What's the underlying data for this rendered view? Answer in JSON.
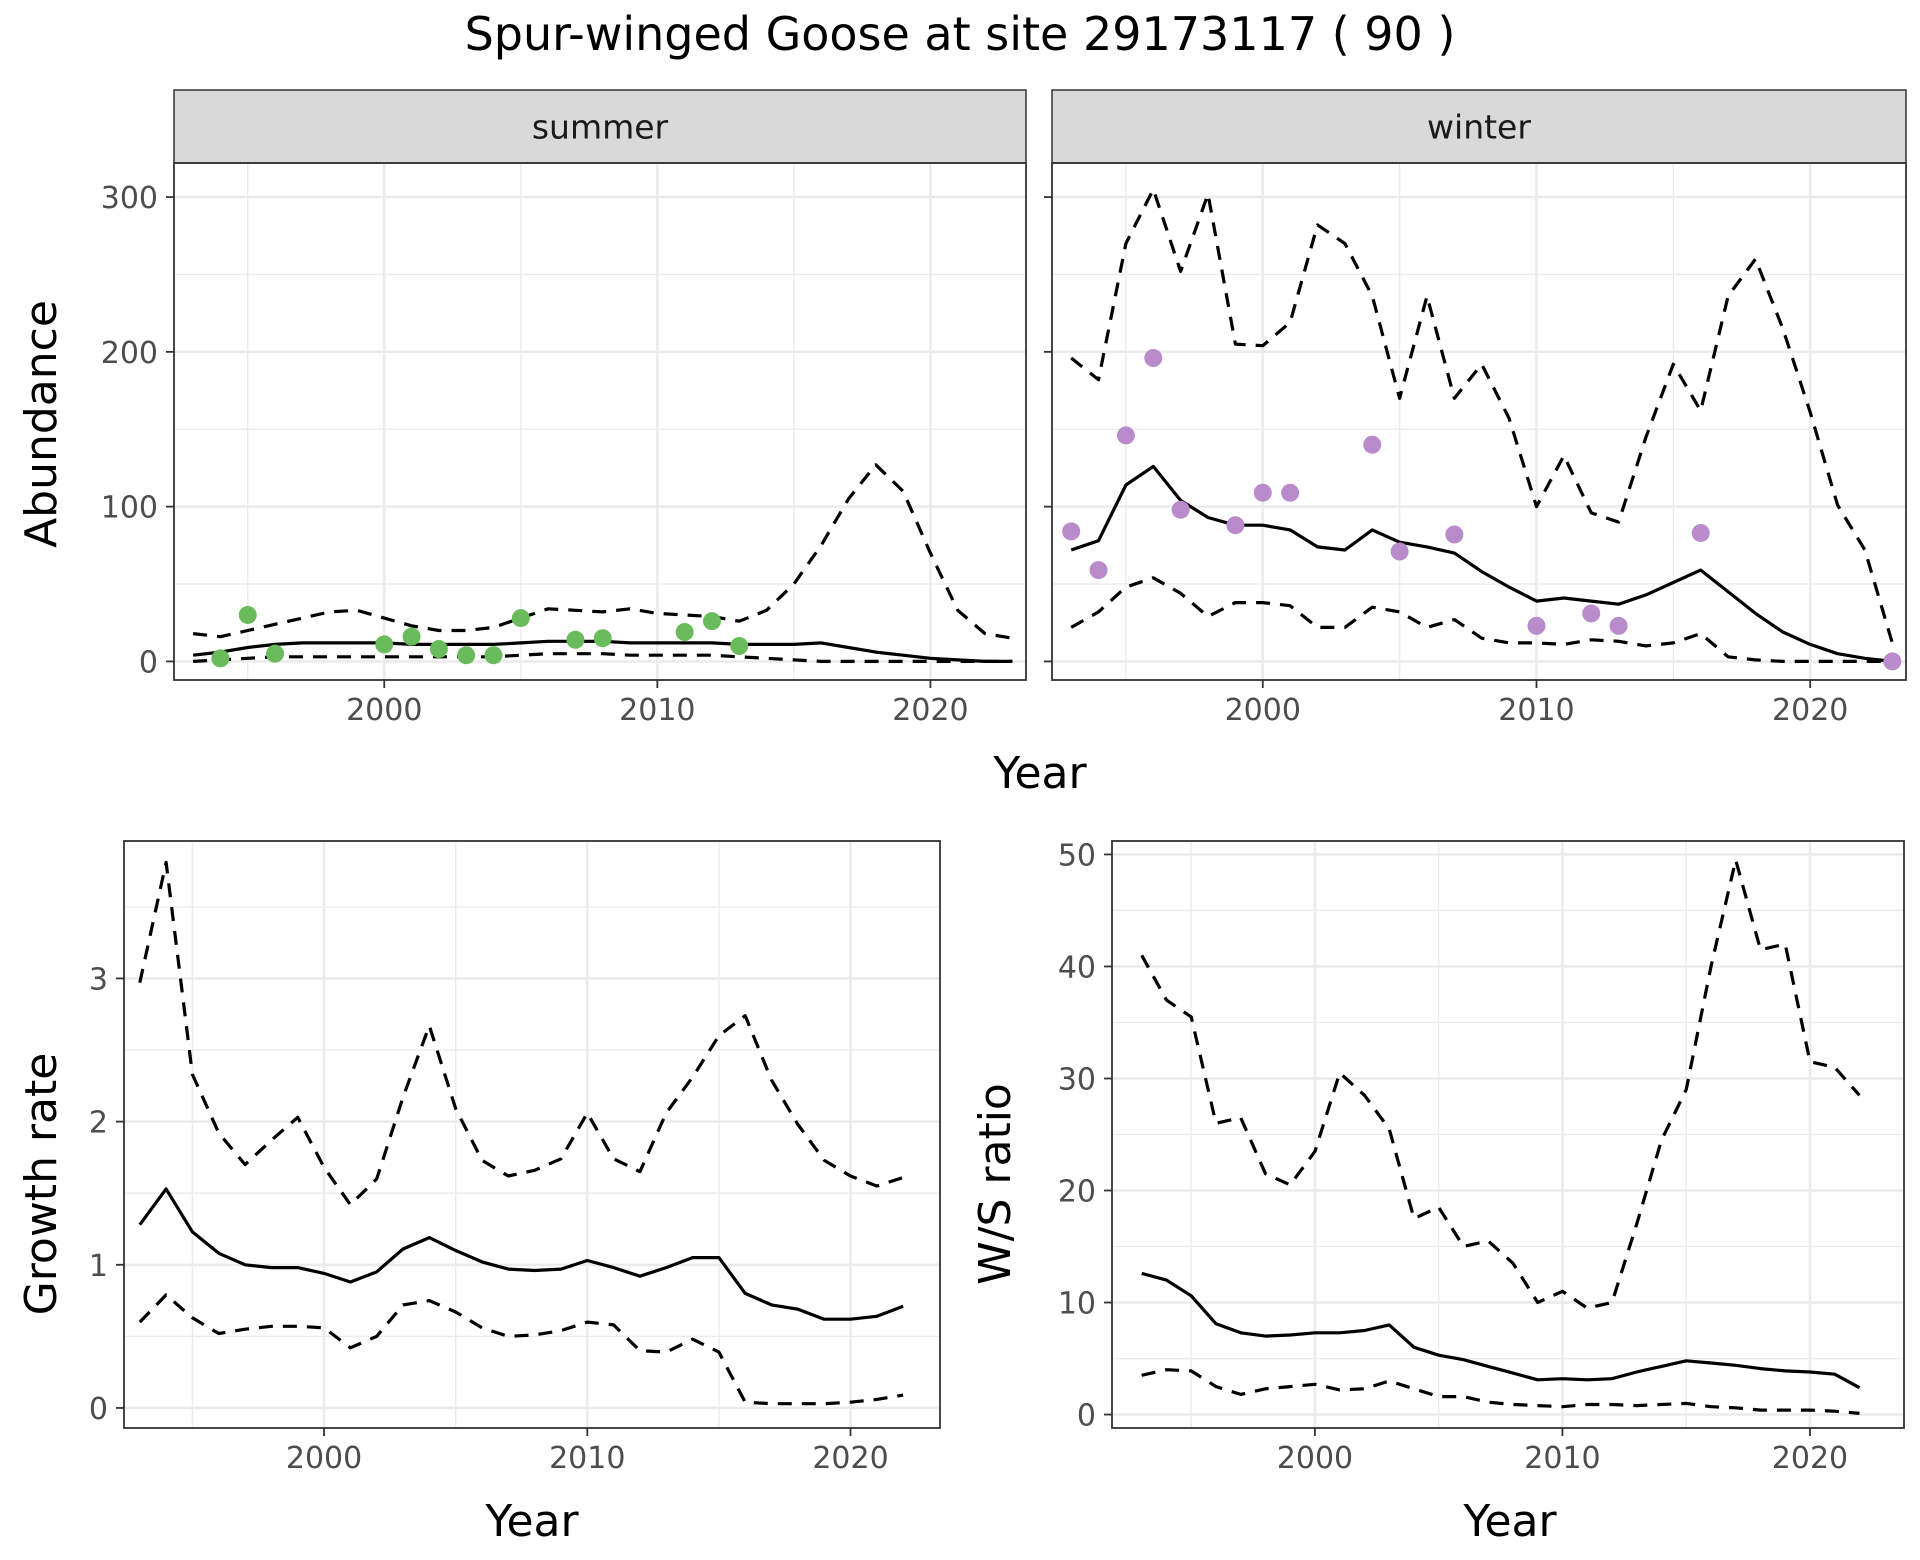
{
  "title": "Spur-winged Goose at site 29173117 ( 90 )",
  "colors": {
    "summer": "#6ABB5B",
    "winter": "#B98BCB",
    "line": "#000000",
    "grid": "#EBEBEB",
    "strip": "#D9D9D9"
  },
  "chart_data": [
    {
      "type": "line",
      "panel": "summer",
      "strip_label": "summer",
      "xlabel": "Year",
      "ylabel": "Abundance",
      "xlim": [
        1992.3,
        2023.5
      ],
      "ylim": [
        -12,
        322
      ],
      "xticks": [
        2000,
        2010,
        2020
      ],
      "xtick_labels": [
        "2000",
        "2010",
        "2020"
      ],
      "yticks": [
        0,
        100,
        200,
        300
      ],
      "ytick_labels": [
        "0",
        "100",
        "200",
        "300"
      ],
      "grid": true,
      "series": [
        {
          "role": "estimate",
          "style": "solid",
          "x": [
            1993,
            1994,
            1995,
            1996,
            1997,
            1998,
            1999,
            2000,
            2001,
            2002,
            2003,
            2004,
            2005,
            2006,
            2007,
            2008,
            2009,
            2010,
            2011,
            2012,
            2013,
            2014,
            2015,
            2016,
            2017,
            2018,
            2019,
            2020,
            2021,
            2022,
            2023
          ],
          "y": [
            4,
            6,
            9,
            11,
            12,
            12,
            12,
            12,
            11,
            11,
            11,
            11,
            12,
            13,
            13,
            13,
            12,
            12,
            12,
            12,
            11,
            11,
            11,
            12,
            9,
            6,
            4,
            2,
            1,
            0,
            0
          ]
        },
        {
          "role": "upper",
          "style": "dashed",
          "x": [
            1993,
            1994,
            1995,
            1996,
            1997,
            1998,
            1999,
            2000,
            2001,
            2002,
            2003,
            2004,
            2005,
            2006,
            2007,
            2008,
            2009,
            2010,
            2011,
            2012,
            2013,
            2014,
            2015,
            2016,
            2017,
            2018,
            2019,
            2020,
            2021,
            2022,
            2023
          ],
          "y": [
            18,
            16,
            20,
            24,
            28,
            32,
            33,
            28,
            23,
            20,
            20,
            22,
            28,
            34,
            33,
            32,
            34,
            31,
            30,
            29,
            26,
            33,
            50,
            75,
            105,
            127,
            110,
            70,
            33,
            18,
            15
          ]
        },
        {
          "role": "lower",
          "style": "dashed",
          "x": [
            1993,
            1994,
            1995,
            1996,
            1997,
            1998,
            1999,
            2000,
            2001,
            2002,
            2003,
            2004,
            2005,
            2006,
            2007,
            2008,
            2009,
            2010,
            2011,
            2012,
            2013,
            2014,
            2015,
            2016,
            2017,
            2018,
            2019,
            2020,
            2021,
            2022,
            2023
          ],
          "y": [
            0,
            1,
            2,
            3,
            3,
            3,
            3,
            3,
            3,
            3,
            3,
            3,
            4,
            5,
            5,
            5,
            4,
            4,
            4,
            4,
            3,
            2,
            1,
            0,
            0,
            0,
            0,
            0,
            0,
            0,
            0
          ]
        },
        {
          "role": "observed",
          "style": "points",
          "x": [
            1994,
            1995,
            1996,
            2000,
            2001,
            2002,
            2003,
            2004,
            2005,
            2007,
            2008,
            2011,
            2012,
            2013
          ],
          "y": [
            2,
            30,
            5,
            11,
            16,
            8,
            4,
            4,
            28,
            14,
            15,
            19,
            26,
            10
          ]
        }
      ]
    },
    {
      "type": "line",
      "panel": "winter",
      "strip_label": "winter",
      "xlabel": "Year",
      "ylabel": "",
      "xlim": [
        1992.3,
        2023.5
      ],
      "ylim": [
        -12,
        322
      ],
      "xticks": [
        2000,
        2010,
        2020
      ],
      "xtick_labels": [
        "2000",
        "2010",
        "2020"
      ],
      "yticks": [
        0,
        100,
        200,
        300
      ],
      "ytick_labels": [],
      "grid": true,
      "series": [
        {
          "role": "estimate",
          "style": "solid",
          "x": [
            1993,
            1994,
            1995,
            1996,
            1997,
            1998,
            1999,
            2000,
            2001,
            2002,
            2003,
            2004,
            2005,
            2006,
            2007,
            2008,
            2009,
            2010,
            2011,
            2012,
            2013,
            2014,
            2015,
            2016,
            2017,
            2018,
            2019,
            2020,
            2021,
            2022,
            2023
          ],
          "y": [
            72,
            78,
            114,
            126,
            104,
            93,
            88,
            88,
            85,
            74,
            72,
            85,
            77,
            74,
            70,
            58,
            48,
            39,
            41,
            39,
            37,
            43,
            51,
            59,
            45,
            31,
            19,
            11,
            5,
            2,
            0
          ]
        },
        {
          "role": "upper",
          "style": "dashed",
          "x": [
            1993,
            1994,
            1995,
            1996,
            1997,
            1998,
            1999,
            2000,
            2001,
            2002,
            2003,
            2004,
            2005,
            2006,
            2007,
            2008,
            2009,
            2010,
            2011,
            2012,
            2013,
            2014,
            2015,
            2016,
            2017,
            2018,
            2019,
            2020,
            2021,
            2022,
            2023
          ],
          "y": [
            196,
            182,
            270,
            305,
            252,
            302,
            205,
            204,
            219,
            282,
            270,
            236,
            170,
            236,
            170,
            192,
            157,
            100,
            133,
            96,
            90,
            145,
            192,
            162,
            236,
            260,
            215,
            161,
            101,
            72,
            12
          ]
        },
        {
          "role": "lower",
          "style": "dashed",
          "x": [
            1993,
            1994,
            1995,
            1996,
            1997,
            1998,
            1999,
            2000,
            2001,
            2002,
            2003,
            2004,
            2005,
            2006,
            2007,
            2008,
            2009,
            2010,
            2011,
            2012,
            2013,
            2014,
            2015,
            2016,
            2017,
            2018,
            2019,
            2020,
            2021,
            2022,
            2023
          ],
          "y": [
            22,
            32,
            48,
            54,
            44,
            29,
            38,
            38,
            36,
            22,
            22,
            35,
            32,
            22,
            27,
            15,
            12,
            12,
            11,
            14,
            13,
            10,
            12,
            18,
            3,
            1,
            0,
            0,
            0,
            0,
            0
          ]
        },
        {
          "role": "observed",
          "style": "points",
          "x": [
            1993,
            1994,
            1995,
            1996,
            1997,
            1999,
            2000,
            2001,
            2004,
            2005,
            2007,
            2010,
            2012,
            2013,
            2016,
            2023
          ],
          "y": [
            84,
            59,
            146,
            196,
            98,
            88,
            109,
            109,
            140,
            71,
            82,
            23,
            31,
            23,
            83,
            0
          ]
        }
      ]
    },
    {
      "type": "line",
      "panel": "growth",
      "xlabel": "Year",
      "ylabel": "Growth rate",
      "xlim": [
        1992.4,
        2023.4
      ],
      "ylim": [
        -0.14,
        3.96
      ],
      "xticks": [
        2000,
        2010,
        2020
      ],
      "xtick_labels": [
        "2000",
        "2010",
        "2020"
      ],
      "yticks": [
        0,
        1,
        2,
        3
      ],
      "ytick_labels": [
        "0",
        "1",
        "2",
        "3"
      ],
      "grid": true,
      "series": [
        {
          "role": "estimate",
          "style": "solid",
          "x": [
            1993,
            1994,
            1995,
            1996,
            1997,
            1998,
            1999,
            2000,
            2001,
            2002,
            2003,
            2004,
            2005,
            2006,
            2007,
            2008,
            2009,
            2010,
            2011,
            2012,
            2013,
            2014,
            2015,
            2016,
            2017,
            2018,
            2019,
            2020,
            2021,
            2022
          ],
          "y": [
            1.28,
            1.53,
            1.23,
            1.08,
            1.0,
            0.98,
            0.98,
            0.94,
            0.88,
            0.95,
            1.11,
            1.19,
            1.1,
            1.02,
            0.97,
            0.96,
            0.97,
            1.03,
            0.98,
            0.92,
            0.98,
            1.05,
            1.05,
            0.8,
            0.72,
            0.69,
            0.62,
            0.62,
            0.64,
            0.71
          ]
        },
        {
          "role": "upper",
          "style": "dashed",
          "x": [
            1993,
            1994,
            1995,
            1996,
            1997,
            1998,
            1999,
            2000,
            2001,
            2002,
            2003,
            2004,
            2005,
            2006,
            2007,
            2008,
            2009,
            2010,
            2011,
            2012,
            2013,
            2014,
            2015,
            2016,
            2017,
            2018,
            2019,
            2020,
            2021,
            2022
          ],
          "y": [
            2.97,
            3.81,
            2.33,
            1.92,
            1.7,
            1.87,
            2.03,
            1.68,
            1.42,
            1.6,
            2.17,
            2.67,
            2.09,
            1.73,
            1.62,
            1.66,
            1.74,
            2.06,
            1.74,
            1.65,
            2.06,
            2.31,
            2.6,
            2.74,
            2.29,
            1.98,
            1.73,
            1.62,
            1.55,
            1.61
          ]
        },
        {
          "role": "lower",
          "style": "dashed",
          "x": [
            1993,
            1994,
            1995,
            1996,
            1997,
            1998,
            1999,
            2000,
            2001,
            2002,
            2003,
            2004,
            2005,
            2006,
            2007,
            2008,
            2009,
            2010,
            2011,
            2012,
            2013,
            2014,
            2015,
            2016,
            2017,
            2018,
            2019,
            2020,
            2021,
            2022
          ],
          "y": [
            0.6,
            0.79,
            0.63,
            0.52,
            0.55,
            0.57,
            0.57,
            0.56,
            0.42,
            0.5,
            0.72,
            0.75,
            0.67,
            0.56,
            0.5,
            0.51,
            0.54,
            0.6,
            0.58,
            0.4,
            0.39,
            0.48,
            0.39,
            0.04,
            0.03,
            0.03,
            0.03,
            0.04,
            0.06,
            0.09
          ]
        }
      ]
    },
    {
      "type": "line",
      "panel": "ratio",
      "xlabel": "Year",
      "ylabel": "W/S ratio",
      "xlim": [
        1991.8,
        2023.8
      ],
      "ylim": [
        -1.2,
        51.2
      ],
      "xticks": [
        2000,
        2010,
        2020
      ],
      "xtick_labels": [
        "2000",
        "2010",
        "2020"
      ],
      "yticks": [
        0,
        10,
        20,
        30,
        40,
        50
      ],
      "ytick_labels": [
        "0",
        "10",
        "20",
        "30",
        "40",
        "50"
      ],
      "grid": true,
      "series": [
        {
          "role": "estimate",
          "style": "solid",
          "x": [
            1993,
            1994,
            1995,
            1996,
            1997,
            1998,
            1999,
            2000,
            2001,
            2002,
            2003,
            2004,
            2005,
            2006,
            2007,
            2008,
            2009,
            2010,
            2011,
            2012,
            2013,
            2014,
            2015,
            2016,
            2017,
            2018,
            2019,
            2020,
            2021,
            2022
          ],
          "y": [
            12.6,
            12.0,
            10.6,
            8.1,
            7.3,
            7.0,
            7.1,
            7.3,
            7.3,
            7.5,
            8.0,
            6.0,
            5.3,
            4.9,
            4.3,
            3.7,
            3.1,
            3.2,
            3.1,
            3.2,
            3.8,
            4.3,
            4.8,
            4.6,
            4.4,
            4.1,
            3.9,
            3.8,
            3.6,
            2.4
          ]
        },
        {
          "role": "upper",
          "style": "dashed",
          "x": [
            1993,
            1994,
            1995,
            1996,
            1997,
            1998,
            1999,
            2000,
            2001,
            2002,
            2003,
            2004,
            2005,
            2006,
            2007,
            2008,
            2009,
            2010,
            2011,
            2012,
            2013,
            2014,
            2015,
            2016,
            2017,
            2018,
            2019,
            2020,
            2021,
            2022
          ],
          "y": [
            41.0,
            37.0,
            35.5,
            26.0,
            26.5,
            21.5,
            20.5,
            23.5,
            30.5,
            28.5,
            25.5,
            17.5,
            18.5,
            15.0,
            15.5,
            13.5,
            10.0,
            11.0,
            9.5,
            10.0,
            17.0,
            24.5,
            29.0,
            40.0,
            49.5,
            41.5,
            42.0,
            31.5,
            31.0,
            28.5
          ]
        },
        {
          "role": "lower",
          "style": "dashed",
          "x": [
            1993,
            1994,
            1995,
            1996,
            1997,
            1998,
            1999,
            2000,
            2001,
            2002,
            2003,
            2004,
            2005,
            2006,
            2007,
            2008,
            2009,
            2010,
            2011,
            2012,
            2013,
            2014,
            2015,
            2016,
            2017,
            2018,
            2019,
            2020,
            2021,
            2022
          ],
          "y": [
            3.5,
            4.0,
            3.9,
            2.5,
            1.8,
            2.3,
            2.5,
            2.7,
            2.2,
            2.3,
            3.0,
            2.3,
            1.6,
            1.6,
            1.1,
            0.9,
            0.8,
            0.7,
            0.9,
            0.9,
            0.8,
            0.9,
            1.0,
            0.7,
            0.6,
            0.4,
            0.4,
            0.4,
            0.3,
            0.1
          ]
        }
      ]
    }
  ]
}
